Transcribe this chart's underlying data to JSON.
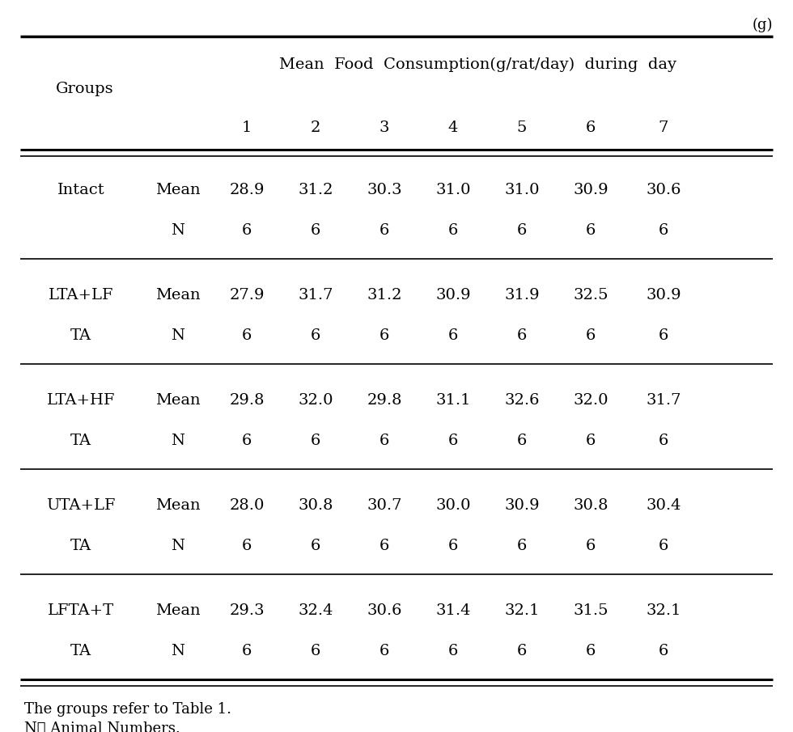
{
  "unit_label": "(g)",
  "header_main": "Mean  Food  Consumption(g/rat/day)  during  day",
  "col_groups_label": "Groups",
  "day_cols": [
    "1",
    "2",
    "3",
    "4",
    "5",
    "6",
    "7"
  ],
  "groups": [
    {
      "name_line1": "Intact",
      "name_line2": "",
      "mean": [
        "28.9",
        "31.2",
        "30.3",
        "31.0",
        "31.0",
        "30.9",
        "30.6"
      ],
      "n": [
        "6",
        "6",
        "6",
        "6",
        "6",
        "6",
        "6"
      ]
    },
    {
      "name_line1": "LTA+LF",
      "name_line2": "TA",
      "mean": [
        "27.9",
        "31.7",
        "31.2",
        "30.9",
        "31.9",
        "32.5",
        "30.9"
      ],
      "n": [
        "6",
        "6",
        "6",
        "6",
        "6",
        "6",
        "6"
      ]
    },
    {
      "name_line1": "LTA+HF",
      "name_line2": "TA",
      "mean": [
        "29.8",
        "32.0",
        "29.8",
        "31.1",
        "32.6",
        "32.0",
        "31.7"
      ],
      "n": [
        "6",
        "6",
        "6",
        "6",
        "6",
        "6",
        "6"
      ]
    },
    {
      "name_line1": "UTA+LF",
      "name_line2": "TA",
      "mean": [
        "28.0",
        "30.8",
        "30.7",
        "30.0",
        "30.9",
        "30.8",
        "30.4"
      ],
      "n": [
        "6",
        "6",
        "6",
        "6",
        "6",
        "6",
        "6"
      ]
    },
    {
      "name_line1": "LFTA+T",
      "name_line2": "TA",
      "mean": [
        "29.3",
        "32.4",
        "30.6",
        "31.4",
        "32.1",
        "31.5",
        "32.1"
      ],
      "n": [
        "6",
        "6",
        "6",
        "6",
        "6",
        "6",
        "6"
      ]
    }
  ],
  "footnote_line1": "The groups refer to Table 1.",
  "footnote_line2": "N： Animal Numbers.",
  "bg_color": "#ffffff",
  "text_color": "#000000",
  "font_size": 14,
  "font_family": "DejaVu Serif"
}
